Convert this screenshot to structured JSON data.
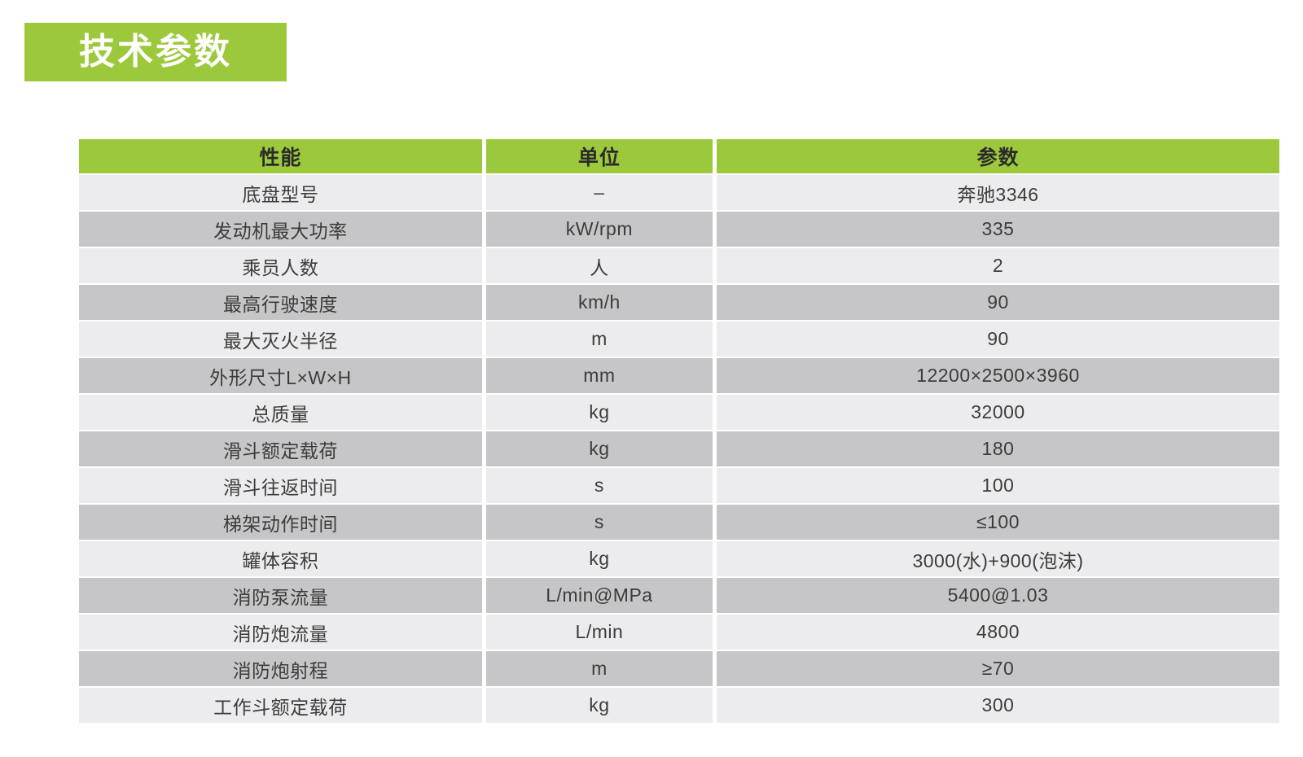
{
  "title_badge": {
    "label": "技术参数"
  },
  "colors": {
    "accent": "#9cc93c",
    "row_light": "#ececee",
    "row_dark": "#c6c6c8",
    "text_dark": "#3c3c3c",
    "header_text": "#2b2b2b",
    "badge_text": "#ffffff"
  },
  "table": {
    "header": {
      "performance": "性能",
      "unit": "单位",
      "parameter": "参数"
    },
    "rows": [
      {
        "performance": "底盘型号",
        "unit": "–",
        "parameter": "奔驰3346"
      },
      {
        "performance": "发动机最大功率",
        "unit": "kW/rpm",
        "parameter": "335"
      },
      {
        "performance": "乘员人数",
        "unit": "人",
        "parameter": "2"
      },
      {
        "performance": "最高行驶速度",
        "unit": "km/h",
        "parameter": "90"
      },
      {
        "performance": "最大灭火半径",
        "unit": "m",
        "parameter": "90"
      },
      {
        "performance": "外形尺寸L×W×H",
        "unit": "mm",
        "parameter": "12200×2500×3960"
      },
      {
        "performance": "总质量",
        "unit": "kg",
        "parameter": "32000"
      },
      {
        "performance": "滑斗额定载荷",
        "unit": "kg",
        "parameter": "180"
      },
      {
        "performance": "滑斗往返时间",
        "unit": "s",
        "parameter": "100"
      },
      {
        "performance": "梯架动作时间",
        "unit": "s",
        "parameter": "≤100"
      },
      {
        "performance": "罐体容积",
        "unit": "kg",
        "parameter": "3000(水)+900(泡沫)"
      },
      {
        "performance": "消防泵流量",
        "unit": "L/min@MPa",
        "parameter": "5400@1.03"
      },
      {
        "performance": "消防炮流量",
        "unit": "L/min",
        "parameter": "4800"
      },
      {
        "performance": "消防炮射程",
        "unit": "m",
        "parameter": "≥70"
      },
      {
        "performance": "工作斗额定载荷",
        "unit": "kg",
        "parameter": "300"
      }
    ]
  }
}
